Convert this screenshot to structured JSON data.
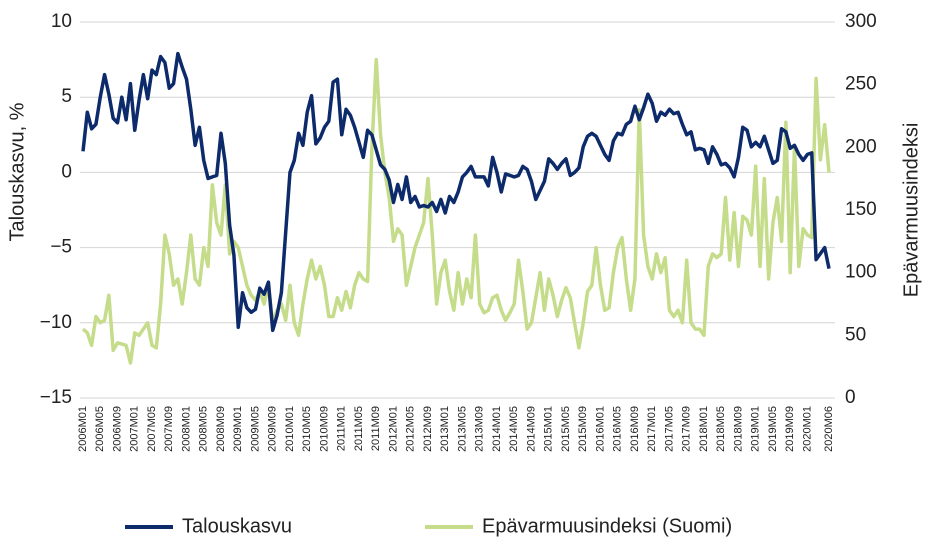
{
  "chart_data": {
    "type": "line",
    "ylabel": "Talouskasvu, %",
    "y2label": "Epävarmuusindeksi",
    "categories": [
      "2006M01",
      null,
      null,
      null,
      "2006M05",
      null,
      null,
      null,
      "2006M09",
      null,
      null,
      null,
      "2007M01",
      null,
      null,
      null,
      "2007M05",
      null,
      null,
      null,
      "2007M09",
      null,
      null,
      null,
      "2008M01",
      null,
      null,
      null,
      "2008M05",
      null,
      null,
      null,
      "2008M09",
      null,
      null,
      null,
      "2009M01",
      null,
      null,
      null,
      "2009M05",
      null,
      null,
      null,
      "2009M09",
      null,
      null,
      null,
      "2010M01",
      null,
      null,
      null,
      "2010M05",
      null,
      null,
      null,
      "2010M09",
      null,
      null,
      null,
      "2011M01",
      null,
      null,
      null,
      "2011M05",
      null,
      null,
      null,
      "2011M09",
      null,
      null,
      null,
      "2012M01",
      null,
      null,
      null,
      "2012M05",
      null,
      null,
      null,
      "2012M09",
      null,
      null,
      null,
      "2013M01",
      null,
      null,
      null,
      "2013M05",
      null,
      null,
      null,
      "2013M09",
      null,
      null,
      null,
      "2014M01",
      null,
      null,
      null,
      "2014M05",
      null,
      null,
      null,
      "2014M09",
      null,
      null,
      null,
      "2015M01",
      null,
      null,
      null,
      "2015M05",
      null,
      null,
      null,
      "2015M09",
      null,
      null,
      null,
      "2016M01",
      null,
      null,
      null,
      "2016M05",
      null,
      null,
      null,
      "2016M09",
      null,
      null,
      null,
      "2017M01",
      null,
      null,
      null,
      "2017M05",
      null,
      null,
      null,
      "2017M09",
      null,
      null,
      null,
      "2018M01",
      null,
      null,
      null,
      "2018M05",
      null,
      null,
      null,
      "2018M09",
      null,
      null,
      null,
      "2019M01",
      null,
      null,
      null,
      "2019M05",
      null,
      null,
      null,
      "2019M09",
      null,
      null,
      null,
      "2020M01",
      null,
      null,
      null,
      null,
      "2020M06"
    ],
    "series": [
      {
        "name": "Talouskasvu",
        "color": "#0d2a6b",
        "axis": "y",
        "values": [
          1.4,
          4.0,
          2.9,
          3.2,
          5.0,
          6.5,
          5.2,
          3.6,
          3.3,
          5.0,
          3.5,
          5.9,
          2.8,
          4.8,
          6.5,
          4.9,
          6.8,
          6.5,
          7.7,
          7.3,
          5.6,
          5.9,
          7.9,
          7.0,
          6.2,
          4.2,
          1.8,
          3.0,
          0.8,
          -0.4,
          -0.3,
          -0.2,
          2.6,
          0.6,
          -3.5,
          -5.5,
          -10.3,
          -8.0,
          -9.0,
          -9.3,
          -9.1,
          -7.7,
          -8.1,
          -7.3,
          -10.5,
          -9.5,
          -8.0,
          -4.0,
          0.0,
          0.8,
          2.6,
          1.8,
          4.0,
          5.1,
          1.9,
          2.3,
          3.0,
          3.4,
          6.0,
          6.2,
          2.5,
          4.2,
          3.8,
          3.0,
          2.0,
          1.0,
          2.8,
          2.5,
          1.5,
          0.5,
          0.2,
          -0.5,
          -2.0,
          -0.8,
          -1.8,
          -0.3,
          -2.0,
          -1.6,
          -2.3,
          -2.2,
          -2.3,
          -2.0,
          -2.6,
          -1.8,
          -2.7,
          -1.6,
          -2.0,
          -1.3,
          -0.3,
          0.0,
          0.4,
          -0.3,
          -0.3,
          -0.3,
          -0.9,
          1.0,
          0.0,
          -1.3,
          -0.1,
          -0.2,
          -0.3,
          -0.2,
          0.4,
          0.2,
          -0.6,
          -1.8,
          -1.2,
          -0.6,
          0.9,
          0.6,
          0.2,
          0.6,
          0.9,
          -0.2,
          0.0,
          0.3,
          1.7,
          2.4,
          2.6,
          2.4,
          1.8,
          1.2,
          0.8,
          2.1,
          2.6,
          2.5,
          3.2,
          3.4,
          4.4,
          3.5,
          4.3,
          5.2,
          4.6,
          3.4,
          4.0,
          3.8,
          4.2,
          3.9,
          4.0,
          3.2,
          2.5,
          2.7,
          1.5,
          1.6,
          1.5,
          0.6,
          1.7,
          1.2,
          0.5,
          0.6,
          0.3,
          -0.3,
          1.0,
          3.0,
          2.8,
          1.7,
          2.0,
          1.7,
          2.4,
          1.5,
          0.6,
          0.8,
          2.9,
          2.7,
          1.6,
          1.8,
          1.2,
          0.8,
          1.2,
          1.3,
          -5.8,
          -5.4,
          -5.0,
          -6.4
        ]
      },
      {
        "name": "Epävarmuusindeksi (Suomi)",
        "color": "#c5dc8a",
        "axis": "y2",
        "values": [
          55,
          52,
          42,
          65,
          60,
          62,
          82,
          38,
          44,
          43,
          42,
          28,
          52,
          50,
          55,
          60,
          42,
          40,
          75,
          130,
          115,
          90,
          95,
          75,
          100,
          130,
          95,
          90,
          120,
          105,
          170,
          140,
          130,
          170,
          115,
          125,
          120,
          105,
          90,
          82,
          78,
          85,
          75,
          90,
          60,
          70,
          75,
          62,
          90,
          60,
          50,
          75,
          95,
          110,
          95,
          105,
          90,
          65,
          65,
          80,
          70,
          85,
          72,
          90,
          100,
          95,
          93,
          200,
          270,
          210,
          180,
          160,
          125,
          135,
          130,
          90,
          105,
          120,
          130,
          140,
          175,
          130,
          75,
          100,
          110,
          85,
          70,
          100,
          75,
          95,
          80,
          130,
          75,
          68,
          70,
          80,
          82,
          70,
          62,
          68,
          75,
          110,
          85,
          55,
          60,
          80,
          100,
          70,
          95,
          82,
          65,
          78,
          88,
          80,
          60,
          40,
          60,
          85,
          90,
          120,
          90,
          70,
          72,
          100,
          120,
          128,
          95,
          70,
          95,
          230,
          130,
          105,
          95,
          115,
          100,
          112,
          70,
          65,
          70,
          60,
          110,
          60,
          55,
          55,
          50,
          105,
          115,
          112,
          115,
          160,
          110,
          148,
          105,
          145,
          142,
          130,
          185,
          105,
          175,
          95,
          140,
          160,
          125,
          220,
          100,
          200,
          105,
          135,
          130,
          128,
          255,
          190,
          218,
          180
        ]
      }
    ],
    "ylim": [
      -15,
      10
    ],
    "yticks": [
      {
        "value": -15,
        "label": "−15"
      },
      {
        "value": -10,
        "label": "−10"
      },
      {
        "value": -5,
        "label": "−5"
      },
      0,
      5,
      10
    ],
    "y2lim": [
      0,
      300
    ],
    "y2ticks": [
      0,
      50,
      100,
      150,
      200,
      250,
      300
    ],
    "grid": true,
    "legend": "bottom"
  }
}
